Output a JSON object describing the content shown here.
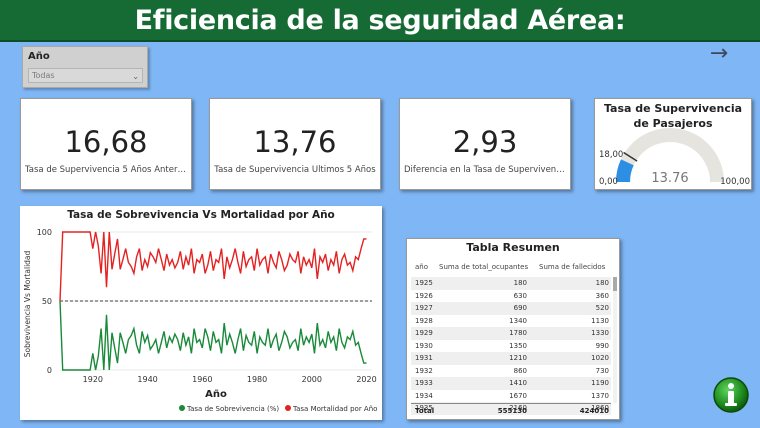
{
  "header": {
    "title": "Eficiencia de la seguridad Aérea:"
  },
  "slicer": {
    "label": "Año",
    "selected": "Todas"
  },
  "cards": [
    {
      "value": "16,68",
      "label": "Tasa de Supervivencia 5 Años Anterio..."
    },
    {
      "value": "13,76",
      "label": "Tasa de Supervivencia Últimos 5 Años"
    },
    {
      "value": "2,93",
      "label": "Diferencia en la Tasa de Supervivencia"
    }
  ],
  "gauge": {
    "title_line1": "Tasa de Supervivencia",
    "title_line2": "de Pasajeros",
    "min_label": "0,00",
    "max_label": "100,00",
    "target_label": "18,00",
    "value_label": "13.76",
    "value": 13.76,
    "target": 18,
    "min": 0,
    "max": 100,
    "fill_color": "#2d8fe3",
    "track_color": "#e6e4df"
  },
  "chart_data": {
    "type": "line",
    "title": "Tasa de Sobrevivencia Vs Mortalidad por Año",
    "xlabel": "Año",
    "ylabel": "Sobrevivencia Vs Mortalidad",
    "xlim": [
      1908,
      2022
    ],
    "ylim": [
      0,
      100
    ],
    "x_ticks": [
      1920,
      1940,
      1960,
      1980,
      2000,
      2020
    ],
    "y_ticks": [
      0,
      50,
      100
    ],
    "reference_line": 50,
    "legend_position": "bottom-right",
    "x": [
      1908,
      1909,
      1910,
      1911,
      1912,
      1913,
      1914,
      1915,
      1916,
      1917,
      1918,
      1919,
      1920,
      1921,
      1922,
      1923,
      1924,
      1925,
      1926,
      1927,
      1928,
      1929,
      1930,
      1931,
      1932,
      1933,
      1934,
      1935,
      1936,
      1937,
      1938,
      1939,
      1940,
      1941,
      1942,
      1943,
      1944,
      1945,
      1946,
      1947,
      1948,
      1949,
      1950,
      1951,
      1952,
      1953,
      1954,
      1955,
      1956,
      1957,
      1958,
      1959,
      1960,
      1961,
      1962,
      1963,
      1964,
      1965,
      1966,
      1967,
      1968,
      1969,
      1970,
      1971,
      1972,
      1973,
      1974,
      1975,
      1976,
      1977,
      1978,
      1979,
      1980,
      1981,
      1982,
      1983,
      1984,
      1985,
      1986,
      1987,
      1988,
      1989,
      1990,
      1991,
      1992,
      1993,
      1994,
      1995,
      1996,
      1997,
      1998,
      1999,
      2000,
      2001,
      2002,
      2003,
      2004,
      2005,
      2006,
      2007,
      2008,
      2009,
      2010,
      2011,
      2012,
      2013,
      2014,
      2015,
      2016,
      2017,
      2018,
      2019,
      2020
    ],
    "series": [
      {
        "name": "Tasa de Sobrevivencia (%)",
        "color": "#1a8a3a",
        "values": [
          50,
          0,
          0,
          0,
          0,
          0,
          0,
          0,
          0,
          0,
          0,
          0,
          12,
          0,
          10,
          30,
          0,
          40,
          0,
          27,
          16,
          5,
          27,
          20,
          12,
          22,
          25,
          30,
          18,
          12,
          28,
          20,
          25,
          15,
          18,
          22,
          12,
          20,
          28,
          16,
          24,
          20,
          26,
          22,
          14,
          27,
          18,
          24,
          12,
          30,
          20,
          22,
          16,
          30,
          24,
          14,
          28,
          20,
          22,
          12,
          34,
          18,
          26,
          20,
          12,
          22,
          30,
          14,
          25,
          20,
          18,
          28,
          12,
          24,
          20,
          18,
          30,
          16,
          22,
          26,
          14,
          20,
          28,
          24,
          16,
          20,
          22,
          14,
          30,
          18,
          24,
          20,
          26,
          12,
          34,
          18,
          22,
          16,
          28,
          20,
          24,
          14,
          30,
          20,
          16,
          24,
          22,
          28,
          18,
          20,
          12,
          5,
          5
        ]
      },
      {
        "name": "Tasa Mortalidad por Año",
        "color": "#e52222",
        "values": [
          50,
          100,
          100,
          100,
          100,
          100,
          100,
          100,
          100,
          100,
          100,
          100,
          88,
          100,
          90,
          70,
          100,
          60,
          100,
          73,
          84,
          95,
          73,
          80,
          88,
          78,
          75,
          70,
          82,
          88,
          72,
          80,
          75,
          85,
          82,
          78,
          88,
          80,
          72,
          84,
          76,
          80,
          74,
          78,
          86,
          73,
          82,
          76,
          88,
          70,
          80,
          78,
          84,
          70,
          76,
          86,
          72,
          80,
          78,
          88,
          66,
          82,
          74,
          80,
          88,
          78,
          70,
          86,
          75,
          80,
          82,
          72,
          88,
          76,
          80,
          82,
          70,
          84,
          78,
          74,
          86,
          80,
          72,
          76,
          84,
          80,
          78,
          86,
          70,
          82,
          76,
          80,
          74,
          88,
          66,
          82,
          78,
          84,
          72,
          80,
          76,
          86,
          70,
          80,
          84,
          76,
          78,
          72,
          82,
          80,
          88,
          95,
          95
        ]
      }
    ]
  },
  "table": {
    "title": "Tabla Resumen",
    "columns": [
      "año",
      "Suma de total_ocupantes",
      "Suma de fallecidos"
    ],
    "rows": [
      [
        "1925",
        "180",
        "180"
      ],
      [
        "1926",
        "630",
        "360"
      ],
      [
        "1927",
        "690",
        "520"
      ],
      [
        "1928",
        "1340",
        "1130"
      ],
      [
        "1929",
        "1780",
        "1330"
      ],
      [
        "1930",
        "1350",
        "990"
      ],
      [
        "1931",
        "1210",
        "1020"
      ],
      [
        "1932",
        "860",
        "730"
      ],
      [
        "1933",
        "1410",
        "1190"
      ],
      [
        "1934",
        "1670",
        "1370"
      ],
      [
        "1935",
        "2160",
        "1860"
      ]
    ],
    "total": [
      "Total",
      "555130",
      "424010"
    ]
  }
}
